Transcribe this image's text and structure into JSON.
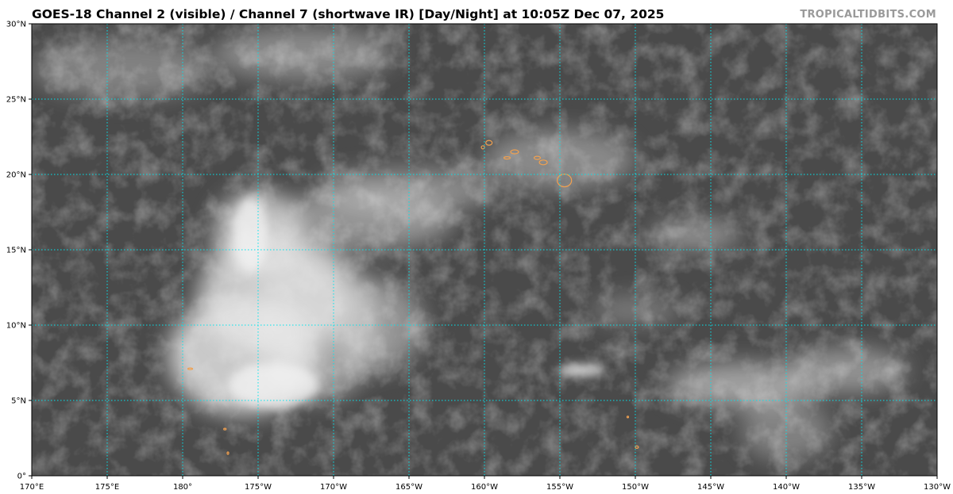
{
  "title": "GOES-18 Channel 2 (visible) / Channel 7 (shortwave IR) [Day/Night] at 10:05Z Dec 07, 2025",
  "brand": "TROPICALTIDBITS.COM",
  "map": {
    "projection": "equirectangular",
    "lon_range": [
      170,
      230
    ],
    "lat_range": [
      0,
      30
    ],
    "gridline_color": "#00e5ee",
    "coastline_color": "#f0a050",
    "lon_labels": [
      "170°E",
      "175°E",
      "180°",
      "175°W",
      "170°W",
      "165°W",
      "160°W",
      "155°W",
      "150°W",
      "145°W",
      "140°W",
      "135°W",
      "130°W"
    ],
    "lat_labels": [
      "0°",
      "5°N",
      "10°N",
      "15°N",
      "20°N",
      "25°N",
      "30°N"
    ]
  }
}
